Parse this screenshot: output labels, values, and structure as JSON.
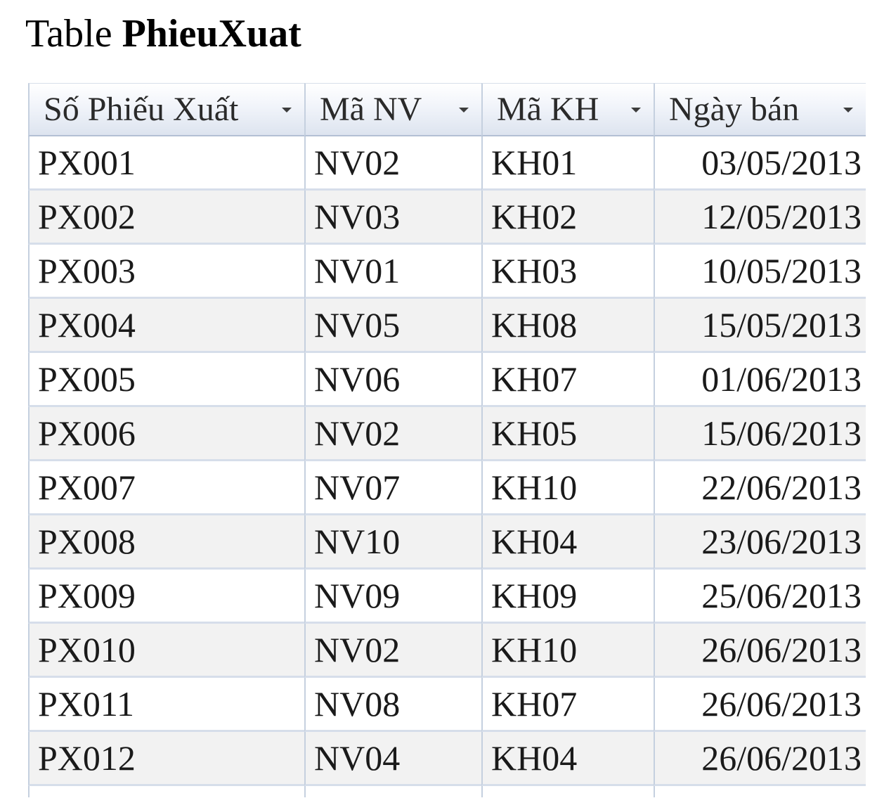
{
  "title": {
    "prefix": "Table",
    "name": "PhieuXuat"
  },
  "table": {
    "columns": [
      {
        "label": "Số Phiếu Xuất",
        "key": "so_phieu"
      },
      {
        "label": "Mã NV",
        "key": "ma_nv"
      },
      {
        "label": "Mã KH",
        "key": "ma_kh"
      },
      {
        "label": "Ngày bán",
        "key": "ngay_ban"
      }
    ],
    "rows": [
      [
        "PX001",
        "NV02",
        "KH01",
        "03/05/2013"
      ],
      [
        "PX002",
        "NV03",
        "KH02",
        "12/05/2013"
      ],
      [
        "PX003",
        "NV01",
        "KH03",
        "10/05/2013"
      ],
      [
        "PX004",
        "NV05",
        "KH08",
        "15/05/2013"
      ],
      [
        "PX005",
        "NV06",
        "KH07",
        "01/06/2013"
      ],
      [
        "PX006",
        "NV02",
        "KH05",
        "15/06/2013"
      ],
      [
        "PX007",
        "NV07",
        "KH10",
        "22/06/2013"
      ],
      [
        "PX008",
        "NV10",
        "KH04",
        "23/06/2013"
      ],
      [
        "PX009",
        "NV09",
        "KH09",
        "25/06/2013"
      ],
      [
        "PX010",
        "NV02",
        "KH10",
        "26/06/2013"
      ],
      [
        "PX011",
        "NV08",
        "KH07",
        "26/06/2013"
      ],
      [
        "PX012",
        "NV04",
        "KH04",
        "26/06/2013"
      ]
    ]
  },
  "icons": {
    "column_filter": "dropdown-arrow-icon"
  },
  "colors": {
    "header_gradient_top": "#ffffff",
    "header_gradient_bottom": "#dde4ef",
    "grid_line": "#c5d0df",
    "alt_row": "#f2f2f2"
  }
}
